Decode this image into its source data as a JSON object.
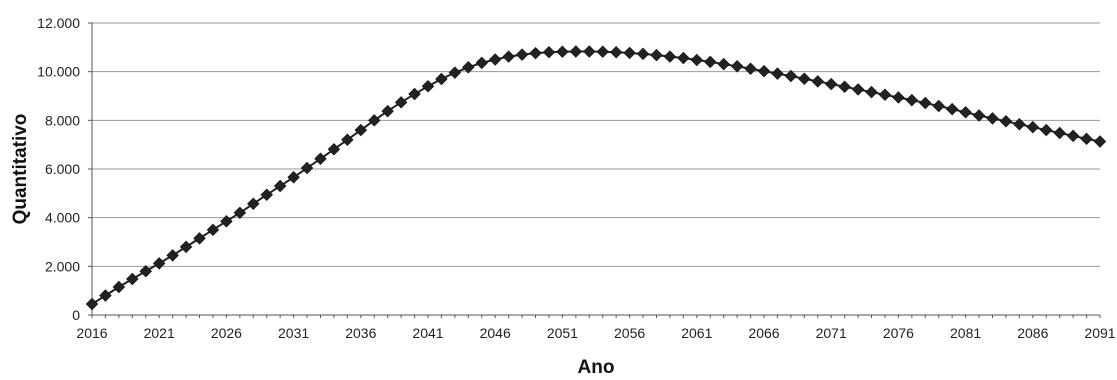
{
  "chart_data": {
    "type": "line",
    "title": "",
    "xlabel": "Ano",
    "ylabel": "Quantitativo",
    "xlim": [
      2016,
      2091
    ],
    "ylim": [
      0,
      12000
    ],
    "x_ticks": [
      2016,
      2021,
      2026,
      2031,
      2036,
      2041,
      2046,
      2051,
      2056,
      2061,
      2066,
      2071,
      2076,
      2081,
      2086,
      2091
    ],
    "y_ticks": [
      {
        "value": 0,
        "label": "0"
      },
      {
        "value": 2000,
        "label": "2.000"
      },
      {
        "value": 4000,
        "label": "4.000"
      },
      {
        "value": 6000,
        "label": "6.000"
      },
      {
        "value": 8000,
        "label": "8.000"
      },
      {
        "value": 10000,
        "label": "10.000"
      },
      {
        "value": 12000,
        "label": "12.000"
      }
    ],
    "grid": {
      "horizontal": true,
      "vertical": false
    },
    "legend": "none",
    "marker": "diamond",
    "colors": {
      "series": "#222222",
      "grid": "#9a9a9a",
      "axis": "#555555"
    },
    "series": [
      {
        "x": [
          2016,
          2017,
          2018,
          2019,
          2020,
          2021,
          2022,
          2023,
          2024,
          2025,
          2026,
          2027,
          2028,
          2029,
          2030,
          2031,
          2032,
          2033,
          2034,
          2035,
          2036,
          2037,
          2038,
          2039,
          2040,
          2041,
          2042,
          2043,
          2044,
          2045,
          2046,
          2047,
          2048,
          2049,
          2050,
          2051,
          2052,
          2053,
          2054,
          2055,
          2056,
          2057,
          2058,
          2059,
          2060,
          2061,
          2062,
          2063,
          2064,
          2065,
          2066,
          2067,
          2068,
          2069,
          2070,
          2071,
          2072,
          2073,
          2074,
          2075,
          2076,
          2077,
          2078,
          2079,
          2080,
          2081,
          2082,
          2083,
          2084,
          2085,
          2086,
          2087,
          2088,
          2089,
          2090,
          2091
        ],
        "y": [
          450,
          800,
          1150,
          1480,
          1800,
          2120,
          2450,
          2800,
          3150,
          3500,
          3850,
          4200,
          4570,
          4940,
          5300,
          5660,
          6040,
          6420,
          6810,
          7200,
          7600,
          8000,
          8380,
          8740,
          9080,
          9400,
          9700,
          9960,
          10180,
          10360,
          10500,
          10620,
          10700,
          10760,
          10800,
          10820,
          10830,
          10830,
          10820,
          10800,
          10770,
          10730,
          10680,
          10620,
          10560,
          10480,
          10400,
          10310,
          10220,
          10120,
          10020,
          9920,
          9820,
          9710,
          9600,
          9490,
          9380,
          9270,
          9160,
          9050,
          8940,
          8830,
          8710,
          8590,
          8460,
          8330,
          8200,
          8080,
          7960,
          7840,
          7720,
          7600,
          7480,
          7360,
          7240,
          7130
        ]
      }
    ]
  }
}
